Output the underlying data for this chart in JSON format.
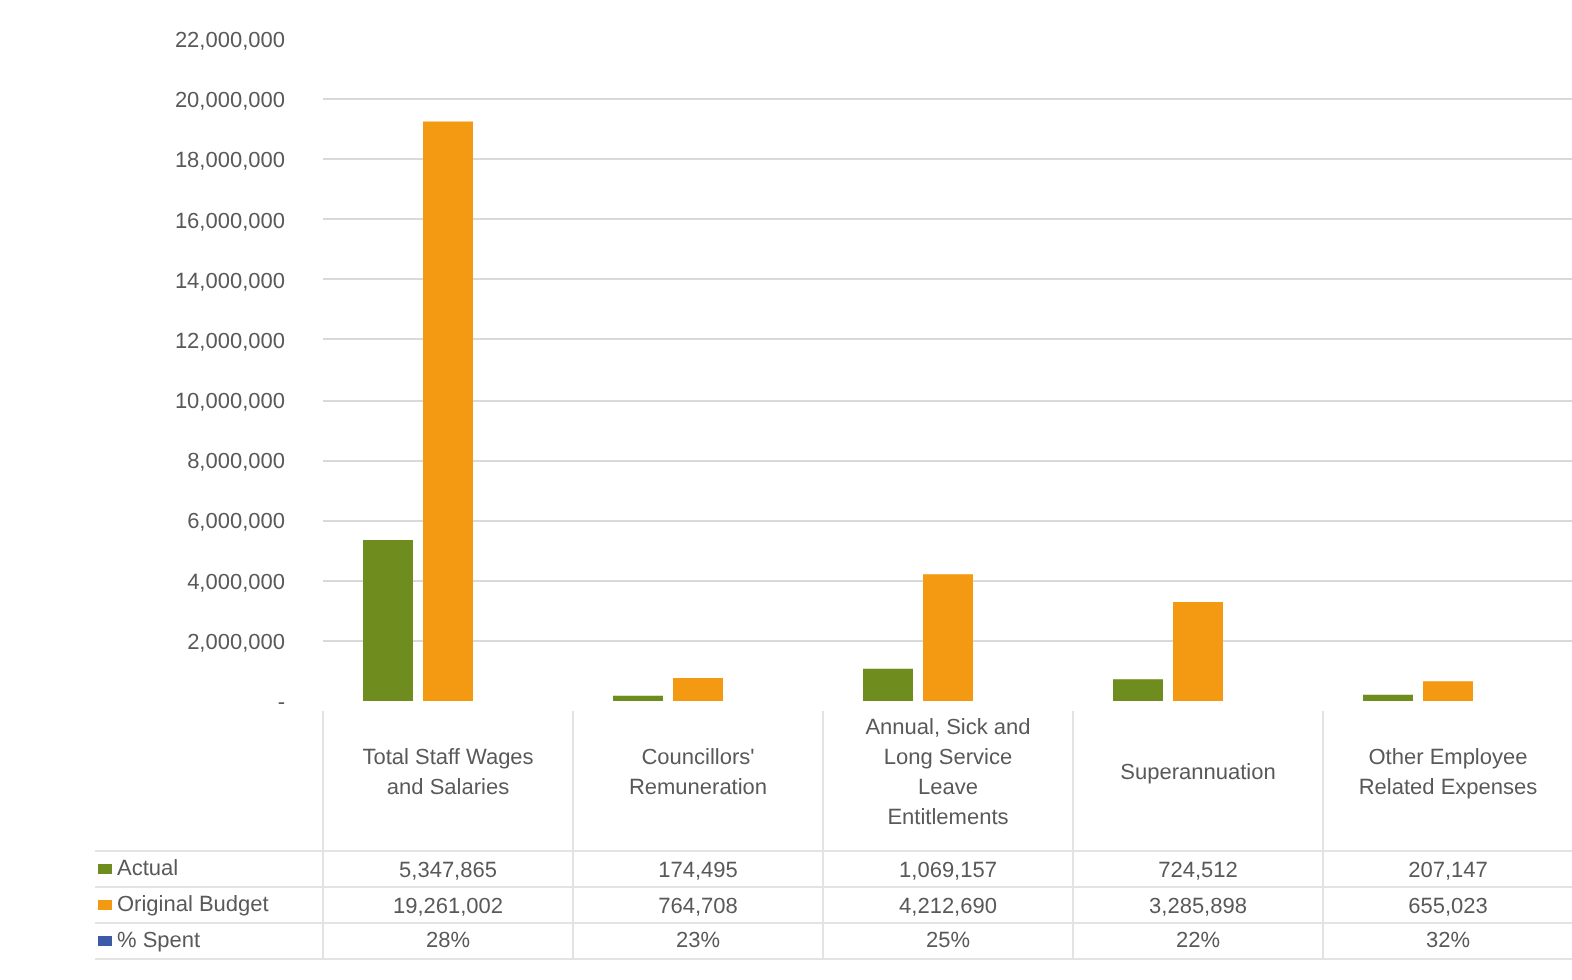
{
  "chart_data": {
    "type": "bar",
    "categories": [
      "Total Staff Wages and Salaries",
      "Councillors' Remuneration",
      "Annual, Sick and Long Service Leave Entitlements",
      "Superannuation",
      "Other Employee Related Expenses"
    ],
    "series": [
      {
        "name": "Actual",
        "color": "#6f8c1e",
        "values": [
          5347865,
          174495,
          1069157,
          724512,
          207147
        ],
        "value_labels": [
          "5,347,865",
          "174,495",
          "1,069,157",
          "724,512",
          "207,147"
        ]
      },
      {
        "name": "Original Budget",
        "color": "#f39a12",
        "values": [
          19261002,
          764708,
          4212690,
          3285898,
          655023
        ],
        "value_labels": [
          "19,261,002",
          "764,708",
          "4,212,690",
          "3,285,898",
          "655,023"
        ]
      },
      {
        "name": "% Spent",
        "color": "#3c5aa8",
        "values": [
          null,
          null,
          null,
          null,
          null
        ],
        "value_labels": [
          "28%",
          "23%",
          "25%",
          "22%",
          "32%"
        ]
      }
    ],
    "ylim": [
      0,
      22000000
    ],
    "yticks": [
      {
        "value": 0,
        "label": "-"
      },
      {
        "value": 2000000,
        "label": "2,000,000"
      },
      {
        "value": 4000000,
        "label": "4,000,000"
      },
      {
        "value": 6000000,
        "label": "6,000,000"
      },
      {
        "value": 8000000,
        "label": "8,000,000"
      },
      {
        "value": 10000000,
        "label": "10,000,000"
      },
      {
        "value": 12000000,
        "label": "12,000,000"
      },
      {
        "value": 14000000,
        "label": "14,000,000"
      },
      {
        "value": 16000000,
        "label": "16,000,000"
      },
      {
        "value": 18000000,
        "label": "18,000,000"
      },
      {
        "value": 20000000,
        "label": "20,000,000"
      },
      {
        "value": 22000000,
        "label": "22,000,000"
      }
    ],
    "grid": "y",
    "legend": "bottom"
  }
}
